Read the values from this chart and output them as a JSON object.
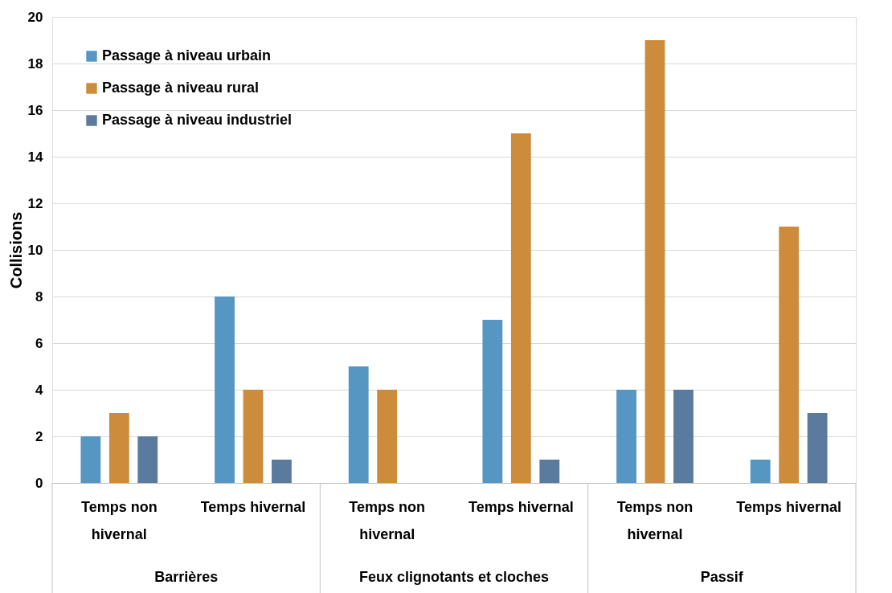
{
  "chart_data": {
    "type": "bar",
    "ylabel": "Collisions",
    "categories": [
      "Temps non hivernal",
      "Temps hivernal",
      "Temps non hivernal",
      "Temps hivernal",
      "Temps non hivernal",
      "Temps hivernal"
    ],
    "annotations": [
      "Barrières",
      "Feux clignotants et cloches",
      "Passif"
    ],
    "series": [
      {
        "name": "Passage à niveau urbain",
        "color": "#5596c2",
        "values": [
          2,
          8,
          5,
          7,
          4,
          1
        ]
      },
      {
        "name": "Passage à niveau rural",
        "color": "#cc8c3c",
        "values": [
          3,
          4,
          4,
          15,
          19,
          11
        ]
      },
      {
        "name": "Passage à niveau industriel",
        "color": "#5a7a9e",
        "values": [
          2,
          1,
          0,
          1,
          4,
          3
        ]
      }
    ],
    "ylim": [
      0,
      20
    ],
    "yticks": [
      0,
      2,
      4,
      6,
      8,
      10,
      12,
      14,
      16,
      18,
      20
    ],
    "grid": "y",
    "legend": "top left"
  }
}
